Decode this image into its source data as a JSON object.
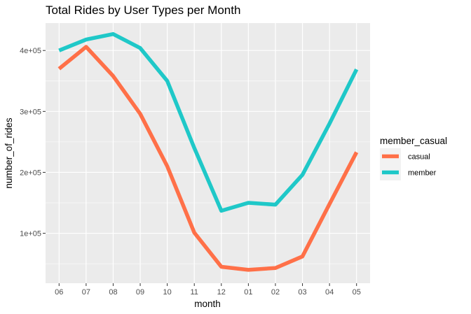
{
  "chart_data": {
    "type": "line",
    "title": "Total Rides by User Types per Month",
    "xlabel": "month",
    "ylabel": "number_of_rides",
    "categories": [
      "06",
      "07",
      "08",
      "09",
      "10",
      "11",
      "12",
      "01",
      "02",
      "03",
      "04",
      "05"
    ],
    "y_ticks": [
      100000,
      200000,
      300000,
      400000
    ],
    "y_tick_labels": [
      "1e+05",
      "2e+05",
      "3e+05",
      "4e+05"
    ],
    "ylim": [
      18000,
      445000
    ],
    "grid": true,
    "legend_placement": "right",
    "legend_title": "member_casual",
    "series": [
      {
        "name": "casual",
        "color": "#FF7048",
        "values": [
          370000,
          406000,
          358000,
          296000,
          210000,
          101000,
          45000,
          40000,
          43000,
          62000,
          148000,
          233000
        ]
      },
      {
        "name": "member",
        "color": "#1FC8C8",
        "values": [
          400000,
          418000,
          427000,
          404000,
          350000,
          240000,
          137000,
          150000,
          147000,
          196000,
          280000,
          369000
        ]
      }
    ],
    "panel_color": "#EBEBEB"
  }
}
